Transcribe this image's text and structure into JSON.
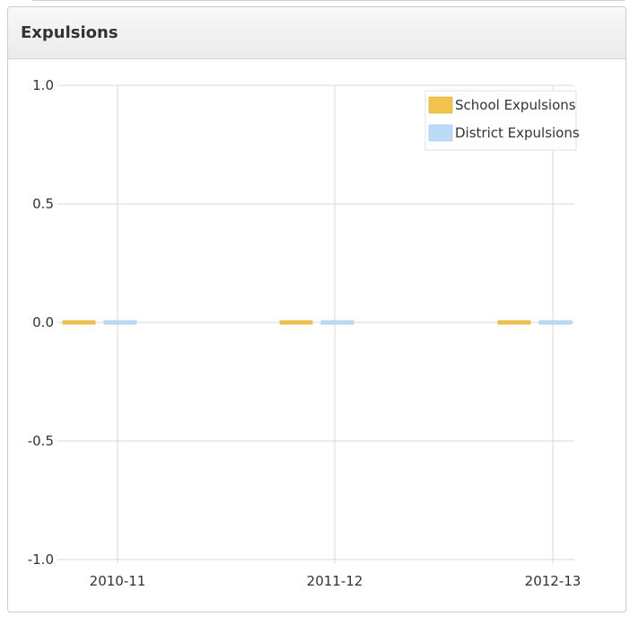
{
  "panel": {
    "title": "Expulsions"
  },
  "colors": {
    "school": "#f2c44e",
    "district": "#bcdcf5",
    "grid": "#d8d8d8"
  },
  "chart_data": {
    "type": "bar",
    "categories": [
      "2010-11",
      "2011-12",
      "2012-13"
    ],
    "series": [
      {
        "name": "School Expulsions",
        "values": [
          0,
          0,
          0
        ]
      },
      {
        "name": "District Expulsions",
        "values": [
          0,
          0,
          0
        ]
      }
    ],
    "y_ticks": [
      "1.0",
      "0.5",
      "0.0",
      "-0.5",
      "-1.0"
    ],
    "ylim": [
      -1,
      1
    ],
    "grid": true,
    "legend": "top-right"
  }
}
